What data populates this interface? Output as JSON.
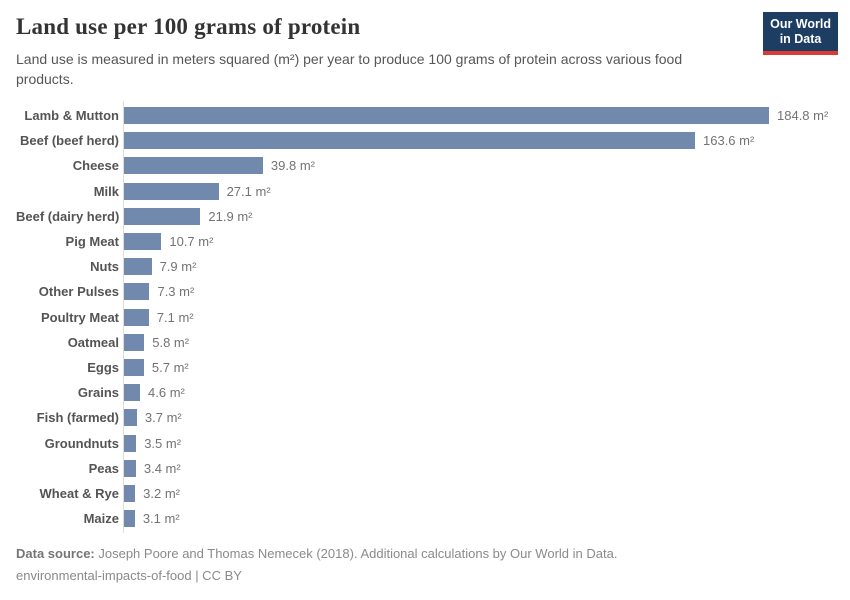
{
  "header": {
    "title": "Land use per 100 grams of protein",
    "subtitle": "Land use is measured in meters squared (m²) per year to produce 100 grams of protein across various food products.",
    "logo": {
      "line1": "Our World",
      "line2": "in Data"
    }
  },
  "chart_data": {
    "type": "bar",
    "orientation": "horizontal",
    "title": "Land use per 100 grams of protein",
    "unit": "m²",
    "xlabel": "",
    "ylabel": "",
    "xlim": [
      0,
      184.8
    ],
    "grid": false,
    "legend": false,
    "categories": [
      "Lamb & Mutton",
      "Beef (beef herd)",
      "Cheese",
      "Milk",
      "Beef (dairy herd)",
      "Pig Meat",
      "Nuts",
      "Other Pulses",
      "Poultry Meat",
      "Oatmeal",
      "Eggs",
      "Grains",
      "Fish (farmed)",
      "Groundnuts",
      "Peas",
      "Wheat & Rye",
      "Maize"
    ],
    "values": [
      184.8,
      163.6,
      39.8,
      27.1,
      21.9,
      10.7,
      7.9,
      7.3,
      7.1,
      5.8,
      5.7,
      4.6,
      3.7,
      3.5,
      3.4,
      3.2,
      3.1
    ],
    "value_labels": [
      "184.8 m²",
      "163.6 m²",
      "39.8 m²",
      "27.1 m²",
      "21.9 m²",
      "10.7 m²",
      "7.9 m²",
      "7.3 m²",
      "7.1 m²",
      "5.8 m²",
      "5.7 m²",
      "4.6 m²",
      "3.7 m²",
      "3.5 m²",
      "3.4 m²",
      "3.2 m²",
      "3.1 m²"
    ]
  },
  "colors": {
    "bar": "#7189ad",
    "logo_navy": "#1d3d63",
    "logo_red": "#dc3a32",
    "axis_line": "#dcdcdc"
  },
  "footer": {
    "source_label": "Data source:",
    "source_text": " Joseph Poore and Thomas Nemecek (2018). Additional calculations by Our World in Data.",
    "line2": "environmental-impacts-of-food | CC BY"
  }
}
